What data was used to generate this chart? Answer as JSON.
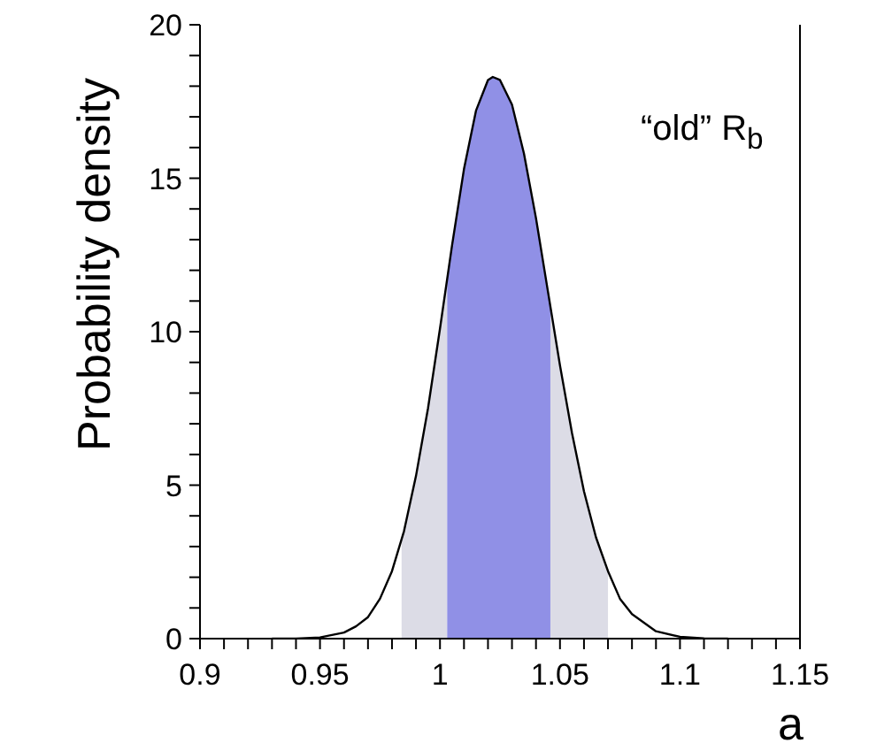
{
  "chart_data": {
    "type": "line",
    "xlabel": "a",
    "ylabel": "Probability density",
    "annotations": [
      "“old” R$_{b}$"
    ],
    "xlim": [
      0.9,
      1.15
    ],
    "ylim": [
      0,
      20
    ],
    "xticks": [
      0.9,
      {
        "value": 0.91,
        "label": null
      },
      {
        "value": 0.92,
        "label": null
      },
      {
        "value": 0.93,
        "label": null
      },
      {
        "value": 0.94,
        "label": null
      },
      0.95,
      {
        "value": 0.96,
        "label": null
      },
      {
        "value": 0.97,
        "label": null
      },
      {
        "value": 0.98,
        "label": null
      },
      {
        "value": 0.99,
        "label": null
      },
      1,
      {
        "value": 1.01,
        "label": null
      },
      {
        "value": 1.02,
        "label": null
      },
      {
        "value": 1.03,
        "label": null
      },
      {
        "value": 1.04,
        "label": null
      },
      1.05,
      {
        "value": 1.06,
        "label": null
      },
      {
        "value": 1.07,
        "label": null
      },
      {
        "value": 1.08,
        "label": null
      },
      {
        "value": 1.09,
        "label": null
      },
      1.1,
      {
        "value": 1.11,
        "label": null
      },
      {
        "value": 1.12,
        "label": null
      },
      {
        "value": 1.13,
        "label": null
      },
      {
        "value": 1.14,
        "label": null
      },
      1.15
    ],
    "yticks": [
      0,
      {
        "value": 1,
        "label": null
      },
      {
        "value": 2,
        "label": null
      },
      {
        "value": 3,
        "label": null
      },
      {
        "value": 4,
        "label": null
      },
      5,
      {
        "value": 6,
        "label": null
      },
      {
        "value": 7,
        "label": null
      },
      {
        "value": 8,
        "label": null
      },
      {
        "value": 9,
        "label": null
      },
      10,
      {
        "value": 11,
        "label": null
      },
      {
        "value": 12,
        "label": null
      },
      {
        "value": 13,
        "label": null
      },
      {
        "value": 14,
        "label": null
      },
      15,
      {
        "value": 16,
        "label": null
      },
      {
        "value": 17,
        "label": null
      },
      {
        "value": 18,
        "label": null
      },
      {
        "value": 19,
        "label": null
      },
      20
    ],
    "grid": false,
    "legend": false,
    "marker": "none",
    "series": [
      {
        "type": "area",
        "color": "#dcdce6",
        "x": [
          0.984,
          0.985,
          0.99,
          0.995,
          1.0,
          1.003
        ],
        "values": [
          3.2,
          3.5,
          5.3,
          7.5,
          10.1,
          11.6
        ]
      },
      {
        "type": "area",
        "color": "#dcdce6",
        "x": [
          1.046,
          1.05,
          1.055,
          1.06,
          1.065,
          1.07
        ],
        "values": [
          10.8,
          8.9,
          6.7,
          4.8,
          3.3,
          2.2
        ]
      },
      {
        "type": "area",
        "color": "#9090e6",
        "x": [
          1.003,
          1.005,
          1.01,
          1.015,
          1.02,
          1.022,
          1.025,
          1.03,
          1.035,
          1.04,
          1.045,
          1.046
        ],
        "values": [
          11.6,
          12.8,
          15.3,
          17.2,
          18.2,
          18.3,
          18.2,
          17.4,
          15.8,
          13.7,
          11.3,
          10.8
        ]
      },
      {
        "color": "#000000",
        "x": [
          0.93,
          0.94,
          0.95,
          0.96,
          0.965,
          0.97,
          0.975,
          0.98,
          0.985,
          0.99,
          0.995,
          1.0,
          1.005,
          1.01,
          1.015,
          1.02,
          1.022,
          1.025,
          1.03,
          1.035,
          1.04,
          1.045,
          1.05,
          1.055,
          1.06,
          1.065,
          1.07,
          1.075,
          1.08,
          1.09,
          1.1,
          1.11,
          1.12
        ],
        "values": [
          0,
          0,
          0.04,
          0.2,
          0.4,
          0.7,
          1.3,
          2.2,
          3.5,
          5.3,
          7.5,
          10.1,
          12.8,
          15.3,
          17.2,
          18.2,
          18.3,
          18.2,
          17.4,
          15.8,
          13.7,
          11.3,
          8.9,
          6.7,
          4.8,
          3.3,
          2.2,
          1.3,
          0.8,
          0.24,
          0.06,
          0.01,
          0
        ]
      }
    ]
  }
}
